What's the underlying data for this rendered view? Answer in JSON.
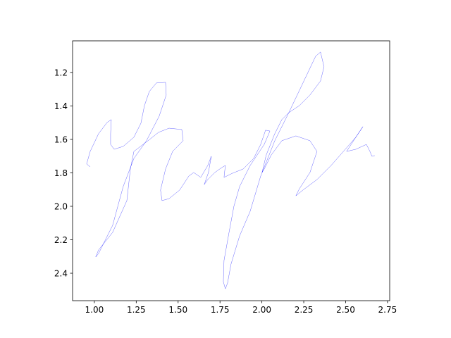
{
  "chart_data": {
    "type": "line",
    "color": "#0000ff",
    "xlim": [
      0.87,
      2.763
    ],
    "ylim": [
      2.564,
      1.011
    ],
    "xticks": [
      {
        "value": 1,
        "label": "1.00"
      },
      1.25,
      {
        "value": 1.5,
        "label": "1.50"
      },
      1.75,
      {
        "value": 2,
        "label": "2.00"
      },
      2.25,
      {
        "value": 2.5,
        "label": "2.50"
      },
      2.75
    ],
    "yticks": [
      1.2,
      1.4,
      1.6,
      1.8,
      {
        "value": 2,
        "label": "2.0"
      },
      2.2,
      2.4
    ],
    "x": [
      0.975,
      0.954,
      0.975,
      1.025,
      1.076,
      1.101,
      1.097,
      1.097,
      1.118,
      1.172,
      1.236,
      1.278,
      1.299,
      1.328,
      1.37,
      1.425,
      1.429,
      1.387,
      1.311,
      1.236,
      1.172,
      1.109,
      1.025,
      1.008,
      1.025,
      1.109,
      1.194,
      1.215,
      1.236,
      1.32,
      1.383,
      1.446,
      1.522,
      1.53,
      1.467,
      1.425,
      1.395,
      1.404,
      1.446,
      1.509,
      1.564,
      1.593,
      1.635,
      1.677,
      1.698,
      1.681,
      1.656,
      1.677,
      1.719,
      1.761,
      1.782,
      1.774,
      1.825,
      1.888,
      1.951,
      1.993,
      2.022,
      2.048,
      2.014,
      1.93,
      1.867,
      1.833,
      1.804,
      1.774,
      1.77,
      1.782,
      1.795,
      1.816,
      1.867,
      1.93,
      1.993,
      2.077,
      2.161,
      2.245,
      2.321,
      2.35,
      2.371,
      2.35,
      2.287,
      2.224,
      2.161,
      2.119,
      2.077,
      2.026,
      2.001,
      2.014,
      2.056,
      2.119,
      2.203,
      2.287,
      2.329,
      2.287,
      2.224,
      2.203,
      2.245,
      2.329,
      2.413,
      2.498,
      2.561,
      2.603,
      2.561,
      2.519,
      2.506,
      2.561,
      2.624,
      2.645,
      2.657,
      2.674
    ],
    "values": [
      1.764,
      1.747,
      1.672,
      1.566,
      1.499,
      1.482,
      1.566,
      1.63,
      1.659,
      1.642,
      1.587,
      1.503,
      1.398,
      1.314,
      1.263,
      1.259,
      1.335,
      1.461,
      1.608,
      1.714,
      1.882,
      2.114,
      2.282,
      2.303,
      2.261,
      2.156,
      1.966,
      1.777,
      1.672,
      1.608,
      1.558,
      1.533,
      1.541,
      1.608,
      1.672,
      1.777,
      1.903,
      1.966,
      1.954,
      1.903,
      1.819,
      1.798,
      1.827,
      1.756,
      1.701,
      1.798,
      1.87,
      1.84,
      1.798,
      1.768,
      1.756,
      1.827,
      1.802,
      1.777,
      1.714,
      1.63,
      1.545,
      1.55,
      1.63,
      1.756,
      1.882,
      2.0,
      2.156,
      2.324,
      2.451,
      2.493,
      2.459,
      2.345,
      2.177,
      2.03,
      1.819,
      1.608,
      1.44,
      1.263,
      1.103,
      1.078,
      1.166,
      1.251,
      1.335,
      1.398,
      1.44,
      1.482,
      1.566,
      1.693,
      1.798,
      1.777,
      1.693,
      1.608,
      1.579,
      1.608,
      1.672,
      1.798,
      1.895,
      1.937,
      1.903,
      1.84,
      1.756,
      1.659,
      1.587,
      1.524,
      1.587,
      1.651,
      1.672,
      1.659,
      1.63,
      1.672,
      1.701,
      1.697
    ]
  }
}
